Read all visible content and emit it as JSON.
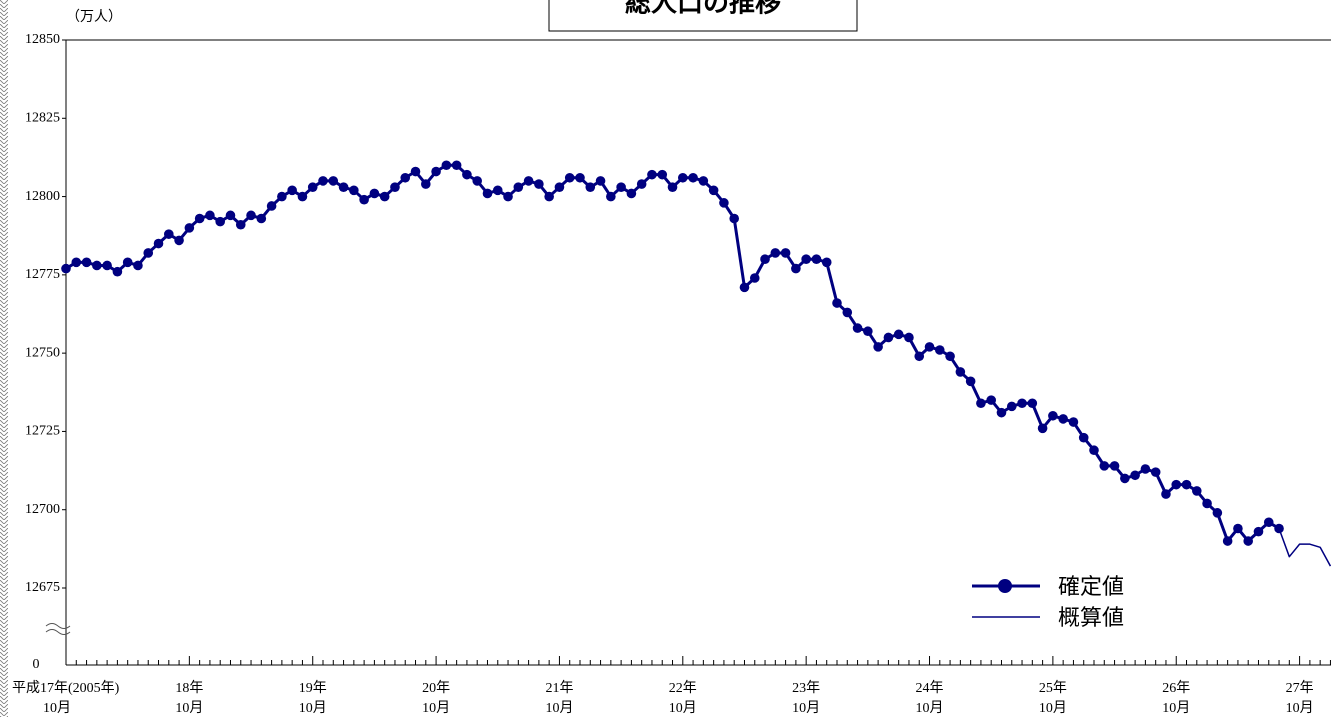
{
  "chart_data": {
    "type": "line",
    "title": "総人口の推移",
    "y_unit_label": "（万人）",
    "categories": [
      [
        "平成17年(2005年)",
        "10月"
      ],
      null,
      null,
      null,
      null,
      null,
      null,
      null,
      null,
      null,
      null,
      null,
      [
        "18年",
        "10月"
      ],
      null,
      null,
      null,
      null,
      null,
      null,
      null,
      null,
      null,
      null,
      null,
      [
        "19年",
        "10月"
      ],
      null,
      null,
      null,
      null,
      null,
      null,
      null,
      null,
      null,
      null,
      null,
      [
        "20年",
        "10月"
      ],
      null,
      null,
      null,
      null,
      null,
      null,
      null,
      null,
      null,
      null,
      null,
      [
        "21年",
        "10月"
      ],
      null,
      null,
      null,
      null,
      null,
      null,
      null,
      null,
      null,
      null,
      null,
      [
        "22年",
        "10月"
      ],
      null,
      null,
      null,
      null,
      null,
      null,
      null,
      null,
      null,
      null,
      null,
      [
        "23年",
        "10月"
      ],
      null,
      null,
      null,
      null,
      null,
      null,
      null,
      null,
      null,
      null,
      null,
      [
        "24年",
        "10月"
      ],
      null,
      null,
      null,
      null,
      null,
      null,
      null,
      null,
      null,
      null,
      null,
      [
        "25年",
        "10月"
      ],
      null,
      null,
      null,
      null,
      null,
      null,
      null,
      null,
      null,
      null,
      null,
      [
        "26年",
        "10月"
      ],
      null,
      null,
      null,
      null,
      null,
      null,
      null,
      null,
      null,
      null,
      null,
      [
        "27年",
        "10月"
      ],
      null,
      null,
      null
    ],
    "series": [
      {
        "name": "確定値",
        "color": "#000080",
        "markers": true,
        "values": [
          12777,
          12779,
          12779,
          12778,
          12778,
          12776,
          12779,
          12778,
          12782,
          12785,
          12788,
          12786,
          12790,
          12793,
          12794,
          12792,
          12794,
          12791,
          12794,
          12793,
          12797,
          12800,
          12802,
          12800,
          12803,
          12805,
          12805,
          12803,
          12802,
          12799,
          12801,
          12800,
          12803,
          12806,
          12808,
          12804,
          12808,
          12810,
          12810,
          12807,
          12805,
          12801,
          12802,
          12800,
          12803,
          12805,
          12804,
          12800,
          12803,
          12806,
          12806,
          12803,
          12805,
          12800,
          12803,
          12801,
          12804,
          12807,
          12807,
          12803,
          12806,
          12806,
          12805,
          12802,
          12798,
          12793,
          12771,
          12774,
          12780,
          12782,
          12782,
          12777,
          12780,
          12780,
          12779,
          12766,
          12763,
          12758,
          12757,
          12752,
          12755,
          12756,
          12755,
          12749,
          12752,
          12751,
          12749,
          12744,
          12741,
          12734,
          12735,
          12731,
          12733,
          12734,
          12734,
          12726,
          12730,
          12729,
          12728,
          12723,
          12719,
          12714,
          12714,
          12710,
          12711,
          12713,
          12712,
          12705,
          12708,
          12708,
          12706,
          12702,
          12699,
          12690,
          12694,
          12690,
          12693,
          12696,
          12694,
          null,
          null,
          null,
          null,
          null
        ]
      },
      {
        "name": "概算値",
        "color": "#000080",
        "markers": false,
        "values": [
          null,
          null,
          null,
          null,
          null,
          null,
          null,
          null,
          null,
          null,
          null,
          null,
          null,
          null,
          null,
          null,
          null,
          null,
          null,
          null,
          null,
          null,
          null,
          null,
          null,
          null,
          null,
          null,
          null,
          null,
          null,
          null,
          null,
          null,
          null,
          null,
          null,
          null,
          null,
          null,
          null,
          null,
          null,
          null,
          null,
          null,
          null,
          null,
          null,
          null,
          null,
          null,
          null,
          null,
          null,
          null,
          null,
          null,
          null,
          null,
          null,
          null,
          null,
          null,
          null,
          null,
          null,
          null,
          null,
          null,
          null,
          null,
          null,
          null,
          null,
          null,
          null,
          null,
          null,
          null,
          null,
          null,
          null,
          null,
          null,
          null,
          null,
          null,
          null,
          null,
          null,
          null,
          null,
          null,
          null,
          null,
          null,
          null,
          null,
          null,
          null,
          null,
          null,
          null,
          null,
          null,
          null,
          null,
          null,
          null,
          null,
          null,
          null,
          null,
          null,
          null,
          null,
          null,
          12694,
          12685,
          12689,
          12689,
          12688,
          12682
        ]
      }
    ],
    "ylim": [
      12675,
      12850
    ],
    "yticks": [
      12675,
      12700,
      12725,
      12750,
      12775,
      12800,
      12825,
      12850
    ],
    "y_break_label": "0",
    "legend": "lower right"
  }
}
